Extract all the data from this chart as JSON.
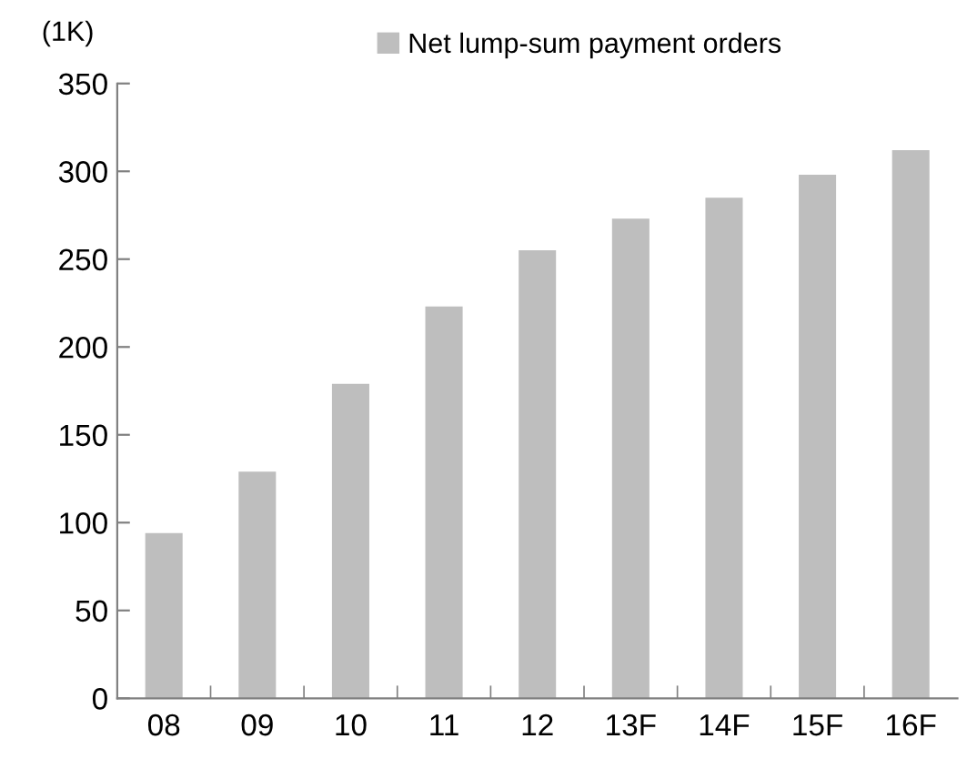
{
  "chart_data": {
    "type": "bar",
    "ylabel": "(1K)",
    "categories": [
      "08",
      "09",
      "10",
      "11",
      "12",
      "13F",
      "14F",
      "15F",
      "16F"
    ],
    "series": [
      {
        "name": "Net lump-sum payment orders",
        "color": "#bebebe",
        "values": [
          94,
          129,
          179,
          223,
          255,
          273,
          285,
          298,
          312
        ]
      }
    ],
    "ylim": [
      0,
      350
    ],
    "yticks": [
      0,
      50,
      100,
      150,
      200,
      250,
      300,
      350
    ],
    "grid": false,
    "legend": "top"
  }
}
